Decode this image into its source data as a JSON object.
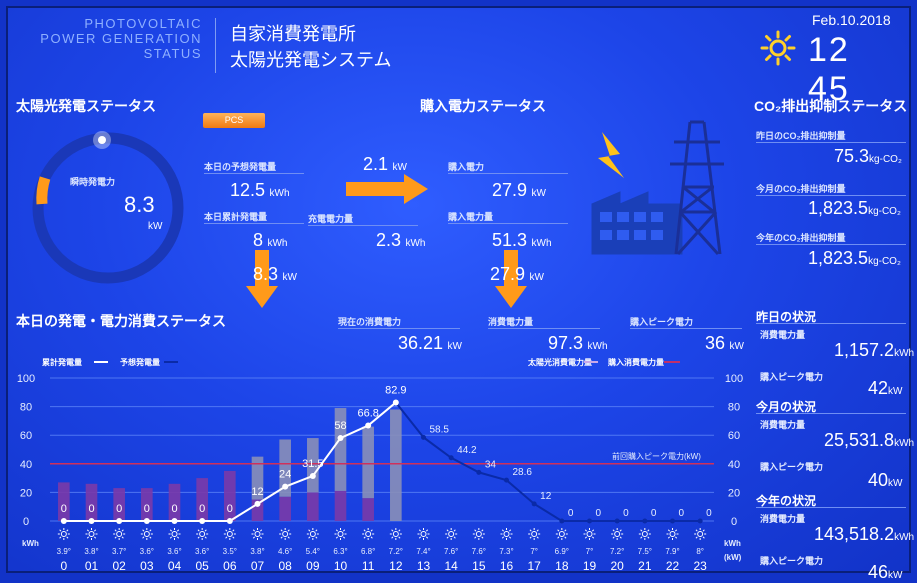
{
  "header": {
    "title_en_1": "PHOTOVOLTAIC",
    "title_en_2": "POWER GENERATION",
    "title_en_3": "STATUS",
    "title_jp_1": "自家消費発電所",
    "title_jp_2": "太陽光発電システム",
    "weather_icon": "sun-icon",
    "date": "Feb.10.2018",
    "time": "12 45"
  },
  "solar_status": {
    "title": "太陽光発電ステータス",
    "gauge_label": "瞬時発電力",
    "gauge_value": "8.3",
    "gauge_unit": "kW",
    "gauge_level": 0.1,
    "pcs_label": "PCS",
    "forecast_label": "本日の予想発電量",
    "forecast_value": "12.5",
    "forecast_unit": "kWh",
    "cumulative_label": "本日累計発電量",
    "cumulative_value": "8",
    "cumulative_unit": "kWh",
    "flow_value": "2.1",
    "flow_unit": "kW",
    "charge_label": "充電電力量",
    "charge_value": "2.3",
    "charge_unit": "kWh",
    "down_value": "8.3",
    "down_unit": "kW"
  },
  "purchase_status": {
    "title": "購入電力ステータス",
    "power_label": "購入電力",
    "power_value": "27.9",
    "power_unit": "kW",
    "energy_label": "購入電力量",
    "energy_value": "51.3",
    "energy_unit": "kWh",
    "down_value": "27.9",
    "down_unit": "kW"
  },
  "co2_status": {
    "title": "CO₂排出抑制ステータス",
    "yesterday_label": "昨日のCO₂排出抑制量",
    "yesterday_value": "75.3",
    "month_label": "今月のCO₂排出抑制量",
    "month_value": "1,823.5",
    "year_label": "今年のCO₂排出抑制量",
    "year_value": "1,823.5",
    "unit": "kg-CO₂"
  },
  "consumption_status": {
    "title": "本日の発電・電力消費ステータス",
    "current_label": "現在の消費電力",
    "current_value": "36.21",
    "current_unit": "kW",
    "total_label": "消費電力量",
    "total_value": "97.3",
    "total_unit": "kWh",
    "peak_label": "購入ピーク電力",
    "peak_value": "36",
    "peak_unit": "kW"
  },
  "summary": {
    "yesterday_title": "昨日の状況",
    "month_title": "今月の状況",
    "year_title": "今年の状況",
    "consumption_label": "消費電力量",
    "peak_label": "購入ピーク電力",
    "yesterday_consumption": "1,157.2",
    "yesterday_peak": "42",
    "month_consumption": "25,531.8",
    "month_peak": "40",
    "year_consumption": "143,518.2",
    "year_peak": "46",
    "kwh_unit": "kWh",
    "kw_unit": "kW"
  },
  "chart_data": {
    "type": "bar",
    "legend_left_1": "累計発電量",
    "legend_left_2": "予想発電量",
    "legend_right_1": "太陽光消費電力量",
    "legend_right_2": "購入消費電力量",
    "threshold_label": "前回購入ピーク電力(kW)",
    "threshold_value": 40,
    "left_unit": "kWh",
    "right_unit_1": "kWh",
    "right_unit_2": "(kW)",
    "ylim": [
      0,
      100
    ],
    "y_ticks": [
      "100",
      "80",
      "60",
      "40",
      "20",
      "0"
    ],
    "hours": [
      "0",
      "01",
      "02",
      "03",
      "04",
      "05",
      "06",
      "07",
      "08",
      "09",
      "10",
      "11",
      "12",
      "13",
      "14",
      "15",
      "16",
      "17",
      "18",
      "19",
      "20",
      "21",
      "22",
      "23"
    ],
    "temperatures": [
      "3.9°",
      "3.8°",
      "3.7°",
      "3.6°",
      "3.6°",
      "3.6°",
      "3.5°",
      "3.8°",
      "4.6°",
      "5.4°",
      "6.3°",
      "6.8°",
      "7.2°",
      "7.4°",
      "7.6°",
      "7.6°",
      "7.3°",
      "7°",
      "6.9°",
      "7°",
      "7.2°",
      "7.5°",
      "7.9°",
      "8°"
    ],
    "cumulative_generation": [
      0,
      0,
      0,
      0,
      0,
      0,
      0,
      12,
      24,
      31.5,
      58,
      66.8,
      82.9,
      null,
      null,
      null,
      null,
      null,
      null,
      null,
      null,
      null,
      null,
      null
    ],
    "generation_labels": [
      "0",
      "0",
      "0",
      "0",
      "0",
      "0",
      "0",
      "12",
      "24",
      "31.5",
      "58",
      "66.8",
      "82.9",
      "",
      "",
      "",
      "",
      "",
      "",
      "",
      "",
      "",
      "",
      ""
    ],
    "forecast_generation": [
      null,
      null,
      null,
      null,
      null,
      null,
      null,
      null,
      null,
      null,
      null,
      null,
      82.9,
      58.5,
      44.2,
      34,
      28.6,
      12,
      0,
      0,
      0,
      0,
      0,
      0
    ],
    "forecast_labels": [
      "",
      "",
      "",
      "",
      "",
      "",
      "",
      "",
      "",
      "",
      "",
      "",
      "",
      "58.5",
      "44.2",
      "34",
      "28.6",
      "12",
      "0",
      "0",
      "0",
      "0",
      "0",
      "0"
    ],
    "solar_consumption": [
      0,
      0,
      0,
      0,
      0,
      0,
      0,
      30,
      40,
      38,
      58,
      50,
      78,
      null,
      null,
      null,
      null,
      null,
      null,
      null,
      null,
      null,
      null,
      null
    ],
    "purchase_consumption": [
      27,
      26,
      23,
      23,
      26,
      30,
      35,
      15,
      17,
      20,
      21,
      16,
      0,
      null,
      null,
      null,
      null,
      null,
      null,
      null,
      null,
      null,
      null,
      null
    ]
  }
}
